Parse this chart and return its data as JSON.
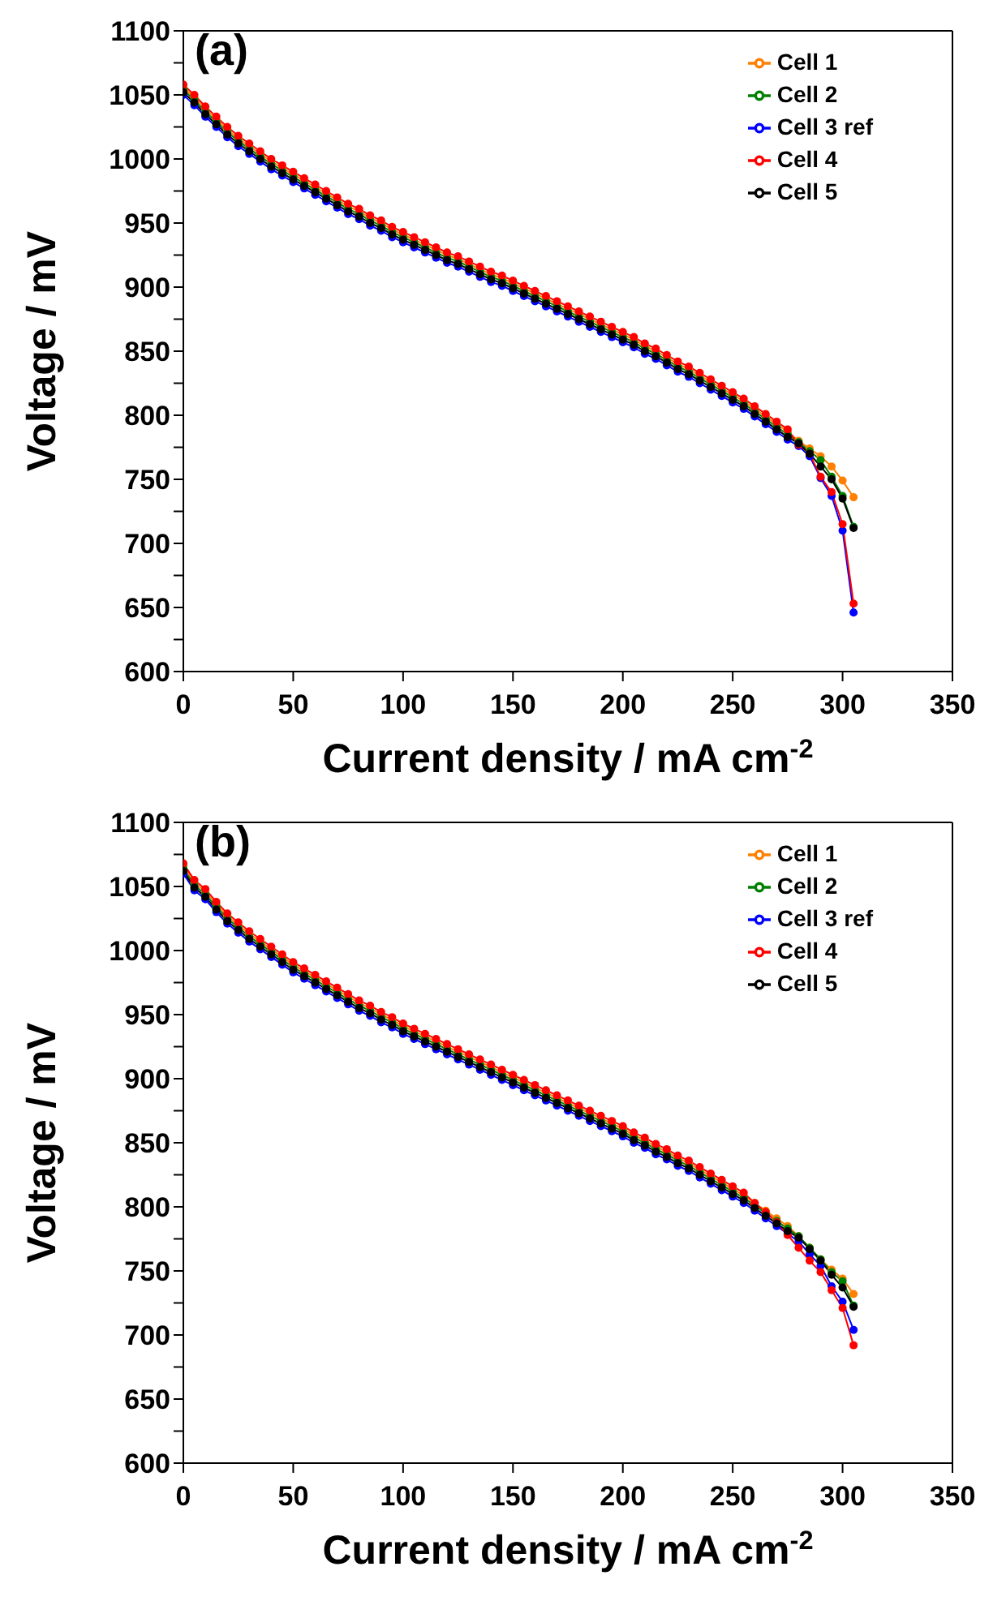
{
  "chart_data": [
    {
      "type": "line",
      "annotations": [
        "(a)"
      ],
      "xlabel": "Current density / mA cm$^{-2}$",
      "ylabel": "Voltage / mV",
      "marker": "circle",
      "legend": "top right",
      "xlim": [
        0,
        350
      ],
      "xticks": [
        0,
        50,
        100,
        150,
        200,
        250,
        300,
        350
      ],
      "ylim": [
        600,
        1100
      ],
      "yticks": [
        600,
        {
          "value": 625,
          "label": null
        },
        650,
        {
          "value": 675,
          "label": null
        },
        700,
        {
          "value": 725,
          "label": null
        },
        750,
        {
          "value": 775,
          "label": null
        },
        800,
        {
          "value": 825,
          "label": null
        },
        850,
        {
          "value": 875,
          "label": null
        },
        900,
        {
          "value": 925,
          "label": null
        },
        950,
        {
          "value": 975,
          "label": null
        },
        1000,
        {
          "value": 1025,
          "label": null
        },
        1050,
        {
          "value": 1075,
          "label": null
        },
        1100
      ],
      "x": [
        0,
        5,
        10,
        15,
        20,
        25,
        30,
        35,
        40,
        45,
        50,
        55,
        60,
        65,
        70,
        75,
        80,
        85,
        90,
        95,
        100,
        105,
        110,
        115,
        120,
        125,
        130,
        135,
        140,
        145,
        150,
        155,
        160,
        165,
        170,
        175,
        180,
        185,
        190,
        195,
        200,
        205,
        210,
        215,
        220,
        225,
        230,
        235,
        240,
        245,
        250,
        255,
        260,
        265,
        270,
        275,
        280,
        285,
        290,
        295,
        300,
        305
      ],
      "series": [
        {
          "name": "Cell 1",
          "color": "#ff8000",
          "values": [
            1056,
            1048,
            1039,
            1031,
            1023,
            1016,
            1010,
            1004,
            998,
            993,
            988,
            983,
            978,
            973,
            968,
            963,
            959,
            954,
            950,
            945,
            941,
            937,
            933,
            929,
            925,
            922,
            918,
            914,
            910,
            907,
            903,
            899,
            895,
            891,
            887,
            883,
            879,
            875,
            871,
            867,
            863,
            859,
            854,
            850,
            845,
            840,
            836,
            831,
            826,
            821,
            816,
            811,
            805,
            799,
            793,
            787,
            780,
            774,
            768,
            760,
            749,
            736
          ]
        },
        {
          "name": "Cell 2",
          "color": "#008000",
          "values": [
            1054,
            1046,
            1037,
            1029,
            1021,
            1014,
            1008,
            1002,
            996,
            991,
            986,
            981,
            976,
            971,
            966,
            961,
            957,
            952,
            948,
            943,
            939,
            935,
            931,
            927,
            923,
            920,
            916,
            912,
            908,
            905,
            901,
            897,
            893,
            889,
            885,
            881,
            877,
            873,
            869,
            865,
            861,
            857,
            852,
            848,
            843,
            838,
            834,
            829,
            824,
            819,
            814,
            809,
            803,
            797,
            791,
            785,
            779,
            772,
            765,
            752,
            737,
            713
          ]
        },
        {
          "name": "Cell 3 ref",
          "color": "#0000ff",
          "values": [
            1050,
            1042,
            1033,
            1025,
            1017,
            1010,
            1004,
            998,
            992,
            987,
            982,
            977,
            972,
            967,
            962,
            957,
            953,
            948,
            944,
            939,
            935,
            931,
            927,
            923,
            919,
            916,
            912,
            908,
            904,
            901,
            897,
            893,
            889,
            885,
            881,
            877,
            873,
            869,
            865,
            861,
            857,
            853,
            848,
            844,
            839,
            834,
            830,
            825,
            820,
            815,
            810,
            805,
            799,
            793,
            787,
            781,
            776,
            768,
            751,
            737,
            710,
            646
          ]
        },
        {
          "name": "Cell 4",
          "color": "#ff0000",
          "values": [
            1058,
            1050,
            1041,
            1033,
            1025,
            1018,
            1012,
            1006,
            1000,
            995,
            990,
            985,
            980,
            975,
            970,
            965,
            961,
            956,
            952,
            947,
            943,
            939,
            935,
            931,
            927,
            924,
            920,
            916,
            912,
            909,
            905,
            901,
            897,
            893,
            889,
            885,
            881,
            877,
            873,
            869,
            865,
            861,
            856,
            852,
            847,
            842,
            838,
            833,
            828,
            823,
            818,
            813,
            807,
            801,
            795,
            789,
            777,
            770,
            752,
            740,
            715,
            653
          ]
        },
        {
          "name": "Cell 5",
          "color": "#000000",
          "values": [
            1052,
            1044,
            1035,
            1027,
            1019,
            1012,
            1006,
            1000,
            994,
            989,
            984,
            979,
            974,
            969,
            964,
            959,
            955,
            950,
            946,
            941,
            937,
            933,
            929,
            925,
            921,
            918,
            914,
            910,
            906,
            903,
            899,
            895,
            891,
            887,
            883,
            879,
            875,
            871,
            867,
            863,
            859,
            855,
            850,
            846,
            841,
            836,
            832,
            827,
            822,
            817,
            812,
            807,
            801,
            795,
            789,
            783,
            778,
            770,
            760,
            750,
            735,
            712
          ]
        }
      ]
    },
    {
      "type": "line",
      "annotations": [
        "(b)"
      ],
      "xlabel": "Current density / mA cm$^{-2}$",
      "ylabel": "Voltage / mV",
      "marker": "circle",
      "legend": "top right",
      "xlim": [
        0,
        350
      ],
      "xticks": [
        0,
        50,
        100,
        150,
        200,
        250,
        300,
        350
      ],
      "ylim": [
        600,
        1100
      ],
      "yticks": [
        600,
        {
          "value": 625,
          "label": null
        },
        650,
        {
          "value": 675,
          "label": null
        },
        700,
        {
          "value": 725,
          "label": null
        },
        750,
        {
          "value": 775,
          "label": null
        },
        800,
        {
          "value": 825,
          "label": null
        },
        850,
        {
          "value": 875,
          "label": null
        },
        900,
        {
          "value": 925,
          "label": null
        },
        950,
        {
          "value": 975,
          "label": null
        },
        1000,
        {
          "value": 1025,
          "label": null
        },
        1050,
        {
          "value": 1075,
          "label": null
        },
        1100
      ],
      "x": [
        0,
        5,
        10,
        15,
        20,
        25,
        30,
        35,
        40,
        45,
        50,
        55,
        60,
        65,
        70,
        75,
        80,
        85,
        90,
        95,
        100,
        105,
        110,
        115,
        120,
        125,
        130,
        135,
        140,
        145,
        150,
        155,
        160,
        165,
        170,
        175,
        180,
        185,
        190,
        195,
        200,
        205,
        210,
        215,
        220,
        225,
        230,
        235,
        240,
        245,
        250,
        255,
        260,
        265,
        270,
        275,
        280,
        285,
        290,
        295,
        300,
        305
      ],
      "series": [
        {
          "name": "Cell 1",
          "color": "#ff8000",
          "values": [
            1066,
            1053,
            1046,
            1036,
            1027,
            1020,
            1013,
            1007,
            1001,
            995,
            989,
            984,
            979,
            974,
            969,
            964,
            959,
            955,
            950,
            946,
            941,
            937,
            933,
            929,
            925,
            921,
            917,
            913,
            909,
            905,
            901,
            897,
            893,
            889,
            885,
            881,
            877,
            873,
            869,
            865,
            861,
            856,
            852,
            847,
            843,
            838,
            834,
            829,
            824,
            819,
            814,
            809,
            803,
            797,
            791,
            785,
            777,
            768,
            759,
            751,
            744,
            732
          ]
        },
        {
          "name": "Cell 2",
          "color": "#008000",
          "values": [
            1064,
            1051,
            1044,
            1034,
            1025,
            1018,
            1011,
            1005,
            999,
            993,
            987,
            982,
            977,
            972,
            967,
            962,
            957,
            953,
            948,
            944,
            939,
            935,
            931,
            927,
            923,
            919,
            915,
            911,
            907,
            903,
            899,
            895,
            891,
            887,
            883,
            879,
            875,
            871,
            867,
            863,
            859,
            854,
            850,
            845,
            841,
            836,
            832,
            827,
            822,
            817,
            812,
            807,
            801,
            795,
            789,
            783,
            777,
            768,
            759,
            749,
            742,
            723
          ]
        },
        {
          "name": "Cell 3 ref",
          "color": "#0000ff",
          "values": [
            1060,
            1047,
            1040,
            1030,
            1021,
            1014,
            1007,
            1001,
            995,
            989,
            983,
            978,
            973,
            968,
            963,
            958,
            953,
            949,
            944,
            940,
            935,
            931,
            927,
            923,
            919,
            915,
            911,
            907,
            903,
            899,
            895,
            891,
            887,
            883,
            879,
            875,
            871,
            867,
            863,
            859,
            855,
            850,
            846,
            841,
            837,
            832,
            828,
            823,
            818,
            813,
            808,
            803,
            797,
            791,
            785,
            779,
            773,
            763,
            754,
            738,
            726,
            704
          ]
        },
        {
          "name": "Cell 4",
          "color": "#ff0000",
          "values": [
            1068,
            1055,
            1048,
            1038,
            1029,
            1022,
            1015,
            1009,
            1003,
            997,
            991,
            986,
            981,
            976,
            971,
            966,
            961,
            957,
            952,
            948,
            943,
            939,
            935,
            931,
            927,
            923,
            919,
            915,
            911,
            907,
            903,
            899,
            895,
            891,
            887,
            883,
            879,
            875,
            871,
            867,
            863,
            858,
            854,
            849,
            845,
            840,
            836,
            831,
            826,
            821,
            816,
            811,
            803,
            796,
            788,
            778,
            768,
            758,
            749,
            735,
            721,
            692
          ]
        },
        {
          "name": "Cell 5",
          "color": "#000000",
          "values": [
            1062,
            1049,
            1042,
            1032,
            1023,
            1016,
            1009,
            1003,
            997,
            991,
            985,
            980,
            975,
            970,
            965,
            960,
            955,
            951,
            946,
            942,
            937,
            933,
            929,
            925,
            921,
            917,
            913,
            909,
            905,
            901,
            897,
            893,
            889,
            885,
            881,
            877,
            873,
            869,
            865,
            861,
            857,
            852,
            848,
            843,
            839,
            834,
            830,
            825,
            820,
            815,
            810,
            805,
            799,
            793,
            787,
            781,
            776,
            767,
            758,
            747,
            737,
            722
          ]
        }
      ]
    }
  ]
}
